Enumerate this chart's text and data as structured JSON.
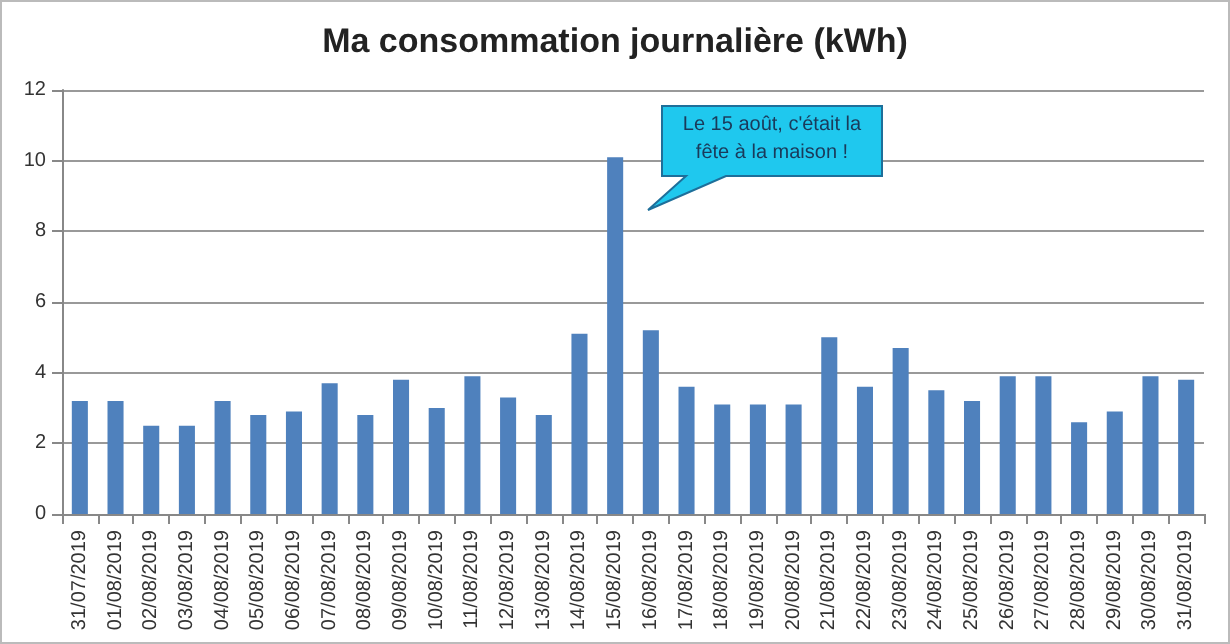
{
  "chart_data": {
    "type": "bar",
    "title": "Ma consommation journalière (kWh)",
    "categories": [
      "31/07/2019",
      "01/08/2019",
      "02/08/2019",
      "03/08/2019",
      "04/08/2019",
      "05/08/2019",
      "06/08/2019",
      "07/08/2019",
      "08/08/2019",
      "09/08/2019",
      "10/08/2019",
      "11/08/2019",
      "12/08/2019",
      "13/08/2019",
      "14/08/2019",
      "15/08/2019",
      "16/08/2019",
      "17/08/2019",
      "18/08/2019",
      "19/08/2019",
      "20/08/2019",
      "21/08/2019",
      "22/08/2019",
      "23/08/2019",
      "24/08/2019",
      "25/08/2019",
      "26/08/2019",
      "27/08/2019",
      "28/08/2019",
      "29/08/2019",
      "30/08/2019",
      "31/08/2019"
    ],
    "values": [
      3.2,
      3.2,
      2.5,
      2.5,
      3.2,
      2.8,
      2.9,
      3.7,
      2.8,
      3.8,
      3.0,
      3.9,
      3.3,
      2.8,
      5.1,
      10.1,
      5.2,
      3.6,
      3.1,
      3.1,
      3.1,
      5.0,
      3.6,
      4.7,
      3.5,
      3.2,
      3.9,
      3.9,
      2.6,
      2.9,
      3.9,
      3.8
    ],
    "color": "#4f81bd",
    "ylim": [
      0,
      12
    ],
    "yticks": [
      0,
      2,
      4,
      6,
      8,
      10,
      12
    ],
    "grid": "y",
    "annotations": [
      "Le 15 août, c'était la fête à la maison !"
    ]
  }
}
